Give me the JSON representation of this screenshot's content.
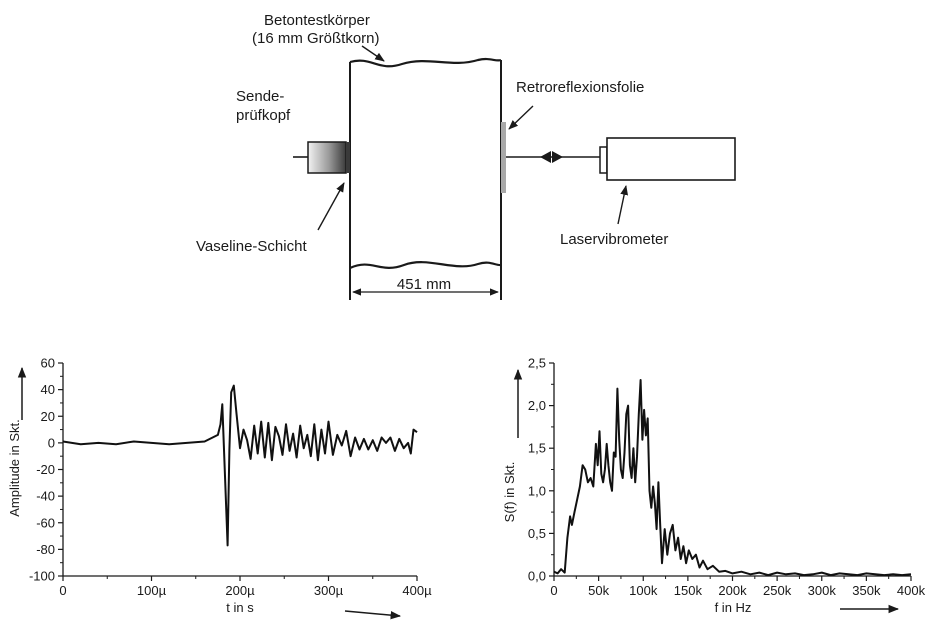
{
  "diagram": {
    "specimen_label_line1": "Betontestkörper",
    "specimen_label_line2": "(16 mm Größtkorn)",
    "transducer_label_line1": "Sende-",
    "transducer_label_line2": "prüfkopf",
    "couplant_label": "Vaseline-Schicht",
    "retro_label": "Retroreflexionsfolie",
    "vibrometer_label": "Laservibrometer",
    "dimension_label": "451 mm"
  },
  "chart_data": [
    {
      "type": "line",
      "xlabel": "t in s",
      "ylabel": "Amplitude in Skt.",
      "xlim": [
        0,
        0.0004
      ],
      "ylim": [
        -100,
        60
      ],
      "xticks": [
        0,
        0.0001,
        0.0002,
        0.0003,
        0.0004
      ],
      "xticklabels": [
        "0",
        "100µ",
        "200µ",
        "300µ",
        "400µ"
      ],
      "yticks": [
        -100,
        -80,
        -60,
        -40,
        -20,
        0,
        20,
        40,
        60
      ],
      "yticklabels": [
        "-100",
        "-80",
        "-60",
        "-40",
        "-20",
        "0",
        "20",
        "40",
        "60"
      ],
      "grid": false,
      "series": [
        {
          "x": [
            0,
            2e-05,
            4e-05,
            6e-05,
            8e-05,
            0.0001,
            0.00012,
            0.00014,
            0.00016,
            0.000175,
            0.000178,
            0.00018,
            0.000183,
            0.000186,
            0.000188,
            0.00019,
            0.000193,
            0.000196,
            0.0002,
            0.000204,
            0.000208,
            0.000212,
            0.000216,
            0.00022,
            0.000224,
            0.000228,
            0.000232,
            0.000236,
            0.00024,
            0.000244,
            0.000248,
            0.000252,
            0.000256,
            0.00026,
            0.000264,
            0.000268,
            0.000272,
            0.000276,
            0.00028,
            0.000284,
            0.000288,
            0.000292,
            0.000296,
            0.0003,
            0.000305,
            0.00031,
            0.000315,
            0.00032,
            0.000325,
            0.00033,
            0.000335,
            0.00034,
            0.000345,
            0.00035,
            0.000355,
            0.00036,
            0.000365,
            0.00037,
            0.000375,
            0.00038,
            0.000385,
            0.00039,
            0.000393,
            0.000396,
            0.0004
          ],
          "y": [
            1,
            -1,
            0,
            -1,
            1,
            0,
            -1,
            0,
            1,
            6,
            14,
            29,
            -25,
            -77,
            -5,
            38,
            43,
            22,
            -4,
            10,
            2,
            -12,
            13,
            -8,
            16,
            -11,
            15,
            -13,
            12,
            5,
            -9,
            14,
            -6,
            7,
            -11,
            13,
            -4,
            6,
            -10,
            14,
            -13,
            10,
            -8,
            16,
            -9,
            6,
            -2,
            9,
            -10,
            4,
            -5,
            3,
            -5,
            2,
            -6,
            4,
            0,
            4,
            -6,
            3,
            -4,
            0,
            -8,
            10,
            8
          ]
        }
      ]
    },
    {
      "type": "line",
      "xlabel": "f in Hz",
      "ylabel": "S(f) in Skt.",
      "xlim": [
        0,
        400000
      ],
      "ylim": [
        0,
        2.5
      ],
      "xticks": [
        0,
        50000,
        100000,
        150000,
        200000,
        250000,
        300000,
        350000,
        400000
      ],
      "xticklabels": [
        "0",
        "50k",
        "100k",
        "150k",
        "200k",
        "250k",
        "300k",
        "350k",
        "400k"
      ],
      "yticks": [
        0,
        0.5,
        1.0,
        1.5,
        2.0,
        2.5
      ],
      "yticklabels": [
        "0,0",
        "0,5",
        "1,0",
        "1,5",
        "2,0",
        "2,5"
      ],
      "grid": false,
      "series": [
        {
          "x": [
            0,
            4000,
            8000,
            12000,
            15000,
            18000,
            20000,
            23000,
            26000,
            29000,
            32000,
            35000,
            38000,
            41000,
            44000,
            47000,
            49000,
            51000,
            53000,
            55000,
            57000,
            59000,
            61000,
            63000,
            65000,
            67000,
            69000,
            71000,
            73000,
            75000,
            77000,
            79000,
            81000,
            83000,
            85000,
            87000,
            89000,
            91000,
            93000,
            95000,
            97000,
            99000,
            101000,
            103000,
            105000,
            107000,
            109000,
            111000,
            113000,
            115000,
            117000,
            119000,
            121000,
            124000,
            127000,
            130000,
            133000,
            136000,
            139000,
            142000,
            145000,
            148000,
            151000,
            155000,
            159000,
            163000,
            167000,
            172000,
            178000,
            185000,
            192000,
            200000,
            210000,
            220000,
            230000,
            240000,
            250000,
            260000,
            270000,
            280000,
            290000,
            300000,
            310000,
            320000,
            330000,
            340000,
            350000,
            360000,
            370000,
            380000,
            390000,
            400000
          ],
          "y": [
            0.05,
            0.03,
            0.08,
            0.04,
            0.45,
            0.7,
            0.6,
            0.75,
            0.9,
            1.05,
            1.3,
            1.25,
            1.1,
            1.15,
            1.05,
            1.55,
            1.3,
            1.7,
            1.2,
            1.1,
            1.25,
            1.55,
            1.3,
            1.1,
            1.0,
            1.45,
            1.4,
            2.2,
            1.6,
            1.25,
            1.15,
            1.45,
            1.9,
            2.0,
            1.3,
            1.15,
            1.5,
            1.1,
            1.4,
            1.9,
            2.3,
            1.6,
            1.95,
            1.65,
            1.85,
            1.0,
            0.8,
            1.05,
            0.85,
            0.55,
            1.1,
            0.6,
            0.15,
            0.55,
            0.25,
            0.5,
            0.6,
            0.3,
            0.45,
            0.2,
            0.35,
            0.15,
            0.3,
            0.2,
            0.25,
            0.1,
            0.18,
            0.08,
            0.12,
            0.05,
            0.06,
            0.03,
            0.05,
            0.02,
            0.04,
            0.01,
            0.04,
            0.02,
            0.03,
            0.01,
            0.02,
            0.04,
            0.01,
            0.03,
            0.02,
            0.01,
            0.03,
            0.02,
            0.01,
            0.02,
            0.01,
            0.02
          ]
        }
      ]
    }
  ]
}
